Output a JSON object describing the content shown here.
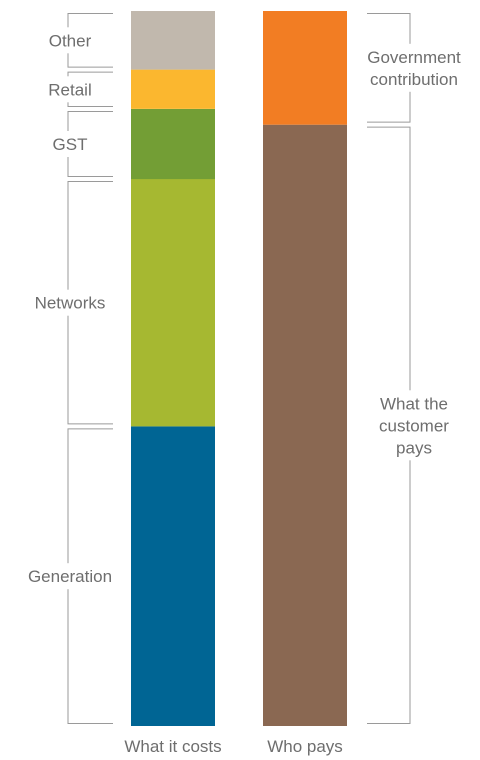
{
  "chart_data": {
    "type": "bar",
    "stacked": true,
    "categories": [
      "What it costs",
      "Who pays"
    ],
    "ylim": [
      0,
      100
    ],
    "grid": false,
    "legend": "none",
    "series": [
      {
        "category": "What it costs",
        "segments": [
          {
            "label": "Generation",
            "value": 41.9,
            "color": "#006594"
          },
          {
            "label": "Networks",
            "value": 34.6,
            "color": "#a6b831"
          },
          {
            "label": "GST",
            "value": 9.8,
            "color": "#739e35"
          },
          {
            "label": "Retail",
            "value": 5.5,
            "color": "#fbb72f"
          },
          {
            "label": "Other",
            "value": 8.2,
            "color": "#c1b8ad"
          }
        ]
      },
      {
        "category": "Who pays",
        "segments": [
          {
            "label": [
              "What the",
              "customer",
              "pays"
            ],
            "value": 84.1,
            "color": "#8a6852"
          },
          {
            "label": [
              "Government",
              "contribution"
            ],
            "value": 15.9,
            "color": "#f27d23"
          }
        ]
      }
    ]
  }
}
